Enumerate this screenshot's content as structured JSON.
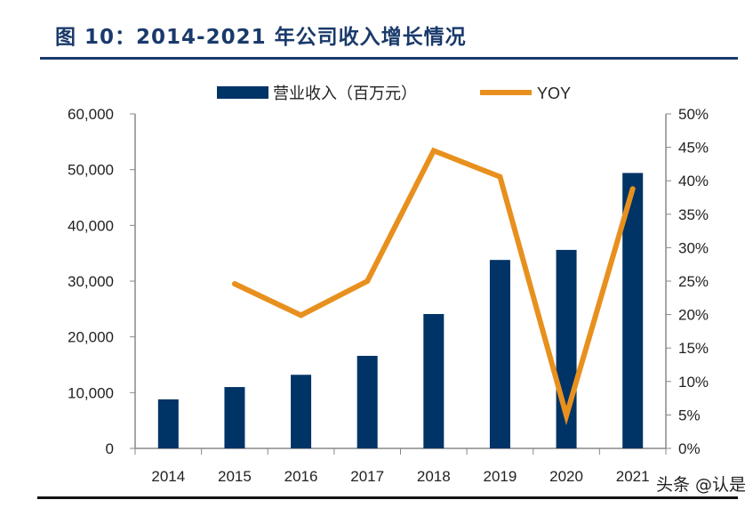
{
  "title": "图 10：2014-2021 年公司收入增长情况",
  "watermark": "头条 @认是",
  "chart_data": {
    "type": "bar+line",
    "categories": [
      "2014",
      "2015",
      "2016",
      "2017",
      "2018",
      "2019",
      "2020",
      "2021"
    ],
    "series": [
      {
        "name": "营业收入（百万元）",
        "type": "bar",
        "axis": "left",
        "color": "#003366",
        "values": [
          8800,
          11000,
          13200,
          16600,
          24100,
          33800,
          35600,
          49400
        ]
      },
      {
        "name": "YOY",
        "type": "line",
        "axis": "right",
        "color": "#E8901E",
        "values": [
          null,
          24.6,
          19.9,
          25.0,
          44.5,
          40.6,
          4.9,
          38.8
        ]
      }
    ],
    "left_axis": {
      "ylim": [
        0,
        60000
      ],
      "ticks": [
        "0",
        "10,000",
        "20,000",
        "30,000",
        "40,000",
        "50,000",
        "60,000"
      ]
    },
    "right_axis": {
      "ylim": [
        0,
        50
      ],
      "ticks": [
        "0%",
        "5%",
        "10%",
        "15%",
        "20%",
        "25%",
        "30%",
        "35%",
        "40%",
        "45%",
        "50%"
      ]
    },
    "legend": "top",
    "grid": false
  }
}
